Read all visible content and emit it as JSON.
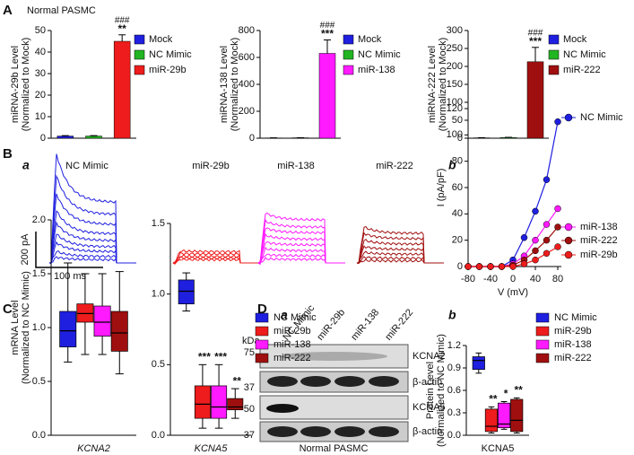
{
  "figure": {
    "panel_labels": [
      "A",
      "B",
      "C",
      "D"
    ],
    "sub_labels": [
      "a",
      "b",
      "a",
      "b"
    ],
    "trace_labels": [
      "NC Mimic",
      "miR-29b",
      "miR-138",
      "miR-222"
    ],
    "scale_bar": [
      "200 pA",
      "100 ms"
    ],
    "blot": {
      "kda": "kDa",
      "markers": [
        75,
        37,
        50,
        37
      ],
      "lanes": [
        "NC Mimic",
        "miR-29b",
        "miR-138",
        "miR-222"
      ],
      "rows": [
        "KCNA2",
        "β-actin",
        "KCNA5",
        "β-actin"
      ],
      "caption": "Normal PASMC"
    }
  },
  "chart_data": [
    {
      "type": "bar",
      "title": "Normal PASMC",
      "ylabel": [
        "miRNA-29b Level",
        "(Normalized to Mock)"
      ],
      "categories": [
        "Mock",
        "NC Mimic",
        "miR-29b"
      ],
      "values": [
        1,
        1,
        45
      ],
      "errors": [
        0.2,
        0.2,
        3
      ],
      "colors": [
        "#1f1fe0",
        "#22b522",
        "#ee1c1c"
      ],
      "significance": [
        null,
        null,
        "**"
      ],
      "significance2": [
        null,
        null,
        "###"
      ],
      "ylim": [
        0,
        50
      ],
      "yticks": [
        0,
        10,
        20,
        30,
        40,
        50
      ]
    },
    {
      "type": "bar",
      "ylabel": [
        "miRNA-138 Level",
        "(Normalized to Mock)"
      ],
      "categories": [
        "Mock",
        "NC Mimic",
        "miR-138"
      ],
      "values": [
        2,
        3,
        630
      ],
      "errors": [
        1,
        1,
        100
      ],
      "colors": [
        "#1f1fe0",
        "#22b522",
        "#ff1aff"
      ],
      "significance": [
        null,
        null,
        "***"
      ],
      "significance2": [
        null,
        null,
        "###"
      ],
      "ylim": [
        0,
        800
      ],
      "yticks": [
        0,
        200,
        400,
        600,
        800
      ]
    },
    {
      "type": "bar",
      "ylabel": [
        "miRNA-222 Level",
        "(Normalized to Mock)"
      ],
      "categories": [
        "Mock",
        "NC Mimic",
        "miR-222"
      ],
      "values": [
        1,
        2,
        213
      ],
      "errors": [
        0.5,
        0.5,
        40
      ],
      "colors": [
        "#1f1fe0",
        "#22b522",
        "#a00f0f"
      ],
      "significance": [
        null,
        null,
        "***"
      ],
      "significance2": [
        null,
        null,
        "###"
      ],
      "ylim": [
        0,
        300
      ],
      "yticks": [
        0,
        50,
        100,
        150,
        200,
        250,
        300
      ]
    },
    {
      "type": "line",
      "xlabel": "V (mV)",
      "ylabel": "I (pA/pF)",
      "x": [
        -80,
        -60,
        -40,
        -20,
        0,
        20,
        40,
        60,
        80
      ],
      "xlim": [
        -80,
        80
      ],
      "xticks": [
        -80,
        -40,
        0,
        40,
        80
      ],
      "ylim": [
        0,
        120
      ],
      "yticks": [
        0,
        20,
        40,
        60,
        80,
        100,
        120
      ],
      "series": [
        {
          "name": "NC Mimic",
          "color": "#1f1fe0",
          "values": [
            0,
            0,
            0,
            0,
            5,
            22,
            42,
            66,
            110
          ]
        },
        {
          "name": "miR-138",
          "color": "#ff1aff",
          "values": [
            0,
            0,
            0,
            0,
            2,
            8,
            20,
            32,
            44
          ]
        },
        {
          "name": "miR-222",
          "color": "#a00f0f",
          "values": [
            0,
            0,
            0,
            0,
            1,
            5,
            12,
            20,
            30
          ]
        },
        {
          "name": "miR-29b",
          "color": "#ee1c1c",
          "values": [
            0,
            0,
            0,
            0,
            0,
            2,
            5,
            10,
            15
          ]
        }
      ]
    },
    {
      "type": "box",
      "ylabel": [
        "mRNA Level",
        "(Normalized to NC Mimic)"
      ],
      "categories": [
        "KCNA2"
      ],
      "ylim": [
        0,
        2
      ],
      "yticks": [
        {
          "value": 0,
          "label": "0.0"
        },
        0.5,
        {
          "value": 1,
          "label": "1.0"
        },
        1.5,
        {
          "value": 2,
          "label": "2.0"
        }
      ],
      "series": [
        {
          "name": "NC Mimic",
          "color": "#1f1fe0",
          "values": [
            [
              0.68,
              0.82,
              0.97,
              1.15,
              1.6
            ]
          ],
          "significance": [
            null
          ]
        },
        {
          "name": "miR-29b",
          "color": "#ee1c1c",
          "values": [
            [
              0.75,
              1.05,
              1.13,
              1.22,
              1.5
            ]
          ],
          "significance": [
            null
          ]
        },
        {
          "name": "miR-138",
          "color": "#ff1aff",
          "values": [
            [
              0.75,
              0.92,
              1.05,
              1.2,
              1.5
            ]
          ],
          "significance": [
            null
          ]
        },
        {
          "name": "miR-222",
          "color": "#a00f0f",
          "values": [
            [
              0.57,
              0.78,
              0.95,
              1.15,
              1.52
            ]
          ],
          "significance": [
            null
          ]
        }
      ]
    },
    {
      "type": "box",
      "categories": [
        "KCNA5"
      ],
      "legend": true,
      "ylim": [
        0,
        1.5
      ],
      "yticks": [
        {
          "value": 0,
          "label": "0.0"
        },
        0.5,
        {
          "value": 1,
          "label": "1.0"
        },
        1.5
      ],
      "series": [
        {
          "name": "NC Mimic",
          "color": "#1f1fe0",
          "values": [
            [
              0.88,
              0.93,
              1.02,
              1.1,
              1.15
            ]
          ],
          "significance": [
            null
          ]
        },
        {
          "name": "miR-29b",
          "color": "#ee1c1c",
          "values": [
            [
              0.05,
              0.12,
              0.22,
              0.35,
              0.5
            ]
          ],
          "significance": [
            "***"
          ]
        },
        {
          "name": "miR-138",
          "color": "#ff1aff",
          "values": [
            [
              0.05,
              0.12,
              0.2,
              0.35,
              0.5
            ]
          ],
          "significance": [
            "***"
          ]
        },
        {
          "name": "miR-222",
          "color": "#a00f0f",
          "values": [
            [
              0.12,
              0.18,
              0.2,
              0.26,
              0.33
            ]
          ],
          "significance": [
            "**"
          ]
        }
      ]
    },
    {
      "type": "box",
      "ylabel": [
        "Protein Level",
        "(Normalized to NC Mimic)"
      ],
      "categories": [
        "KCNA5"
      ],
      "legend": true,
      "ylim": [
        0,
        1.2
      ],
      "yticks": [
        {
          "value": 0,
          "label": "0.0"
        },
        0.3,
        0.6,
        0.9,
        1.2
      ],
      "series": [
        {
          "name": "NC Mimic",
          "color": "#1f1fe0",
          "values": [
            [
              0.83,
              0.88,
              1.0,
              1.05,
              1.1
            ]
          ],
          "significance": [
            null
          ]
        },
        {
          "name": "miR-29b",
          "color": "#ee1c1c",
          "values": [
            [
              0.03,
              0.05,
              0.12,
              0.35,
              0.38
            ]
          ],
          "significance": [
            "**"
          ]
        },
        {
          "name": "miR-138",
          "color": "#ff1aff",
          "values": [
            [
              0.08,
              0.1,
              0.15,
              0.43,
              0.45
            ]
          ],
          "significance": [
            "*"
          ]
        },
        {
          "name": "miR-222",
          "color": "#a00f0f",
          "values": [
            [
              0.03,
              0.05,
              0.2,
              0.48,
              0.5
            ]
          ],
          "significance": [
            "**"
          ]
        }
      ]
    }
  ]
}
